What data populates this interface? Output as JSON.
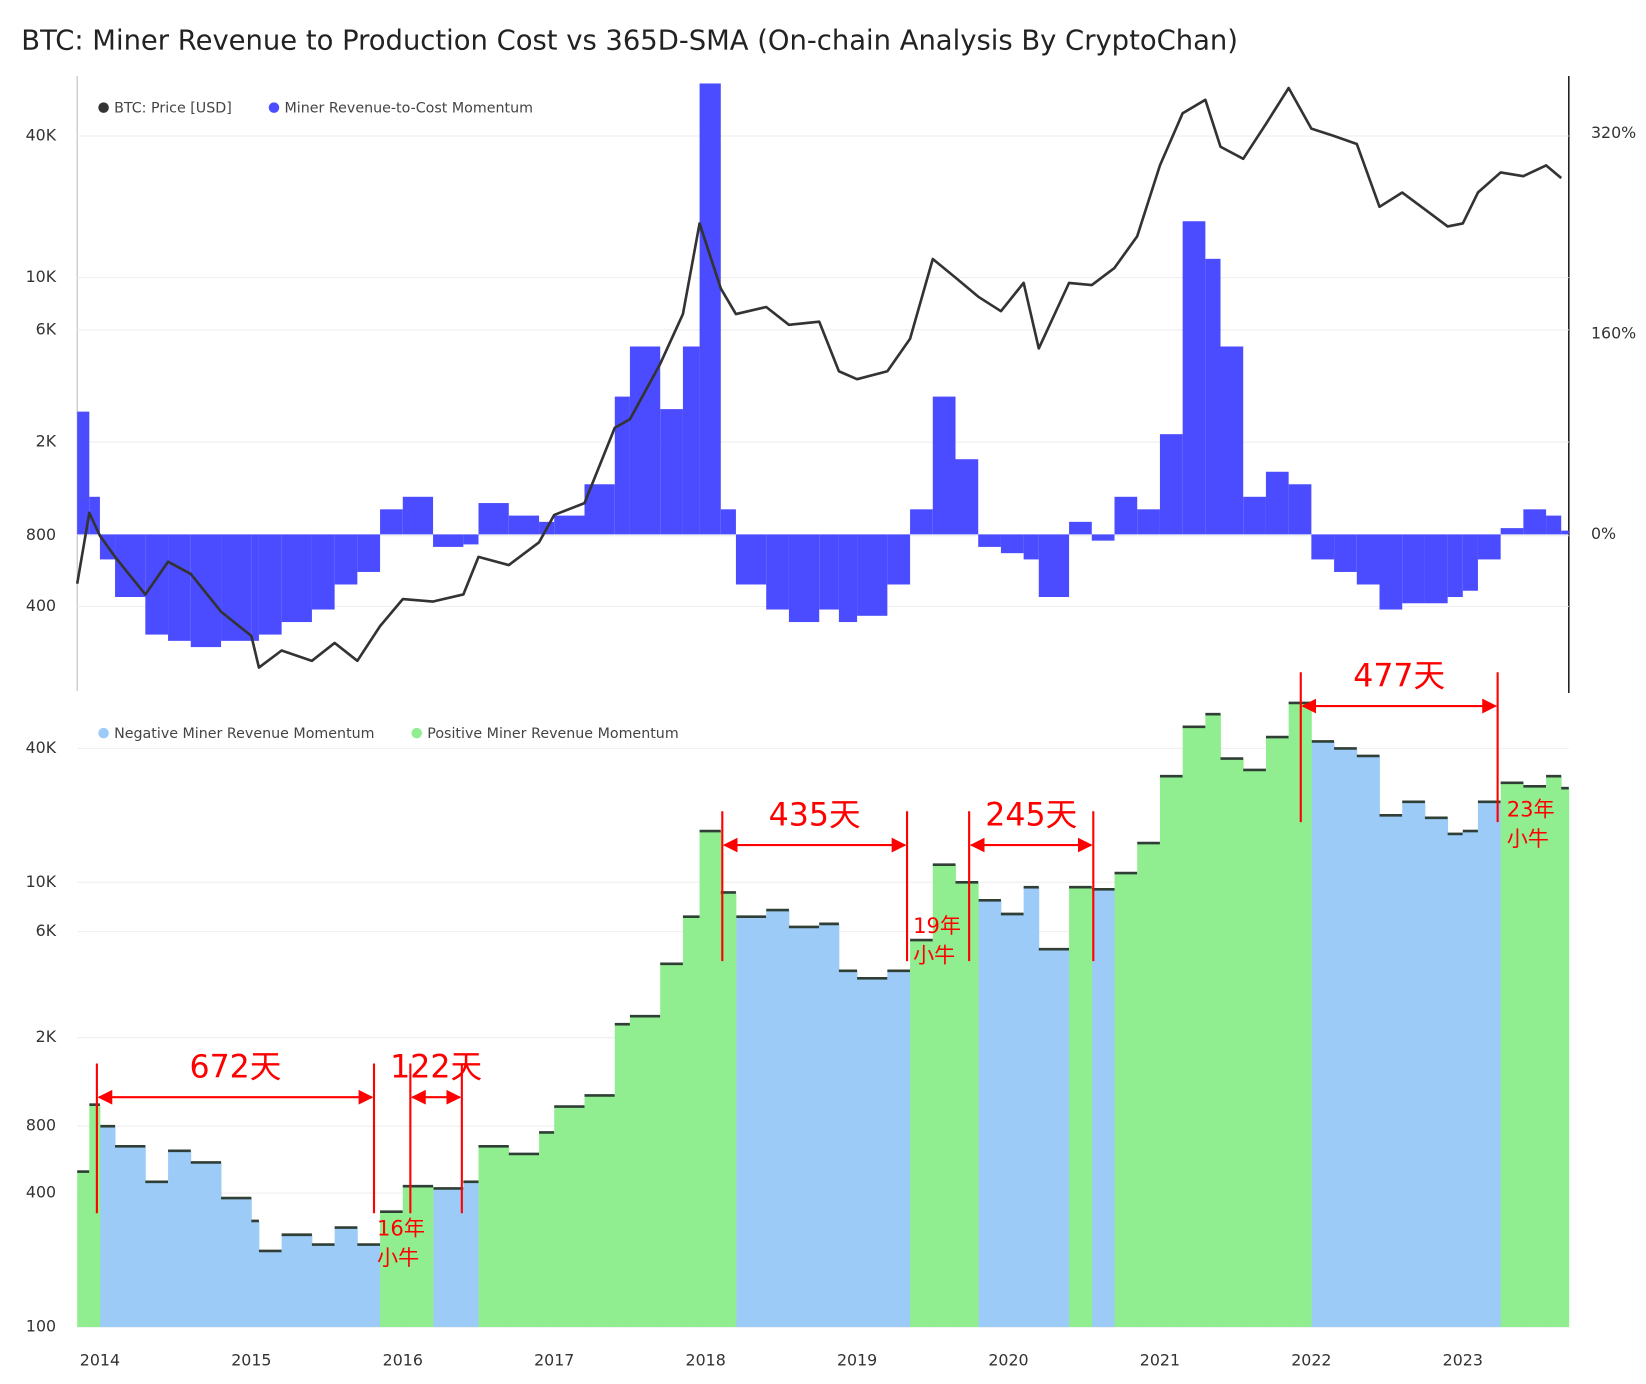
{
  "chart_data": [
    {
      "type": "line",
      "title": "BTC: Miner Revenue to Production Cost vs 365D-SMA (On-chain Analysis By CryptoChan)",
      "log_scale": true,
      "grid": true,
      "legend": "upper left",
      "xlim": [
        2013.85,
        2023.7
      ],
      "ylim": [
        175,
        72000
      ],
      "yticks": [
        {
          "value": 400,
          "label": "400"
        },
        {
          "value": 800,
          "label": "800"
        },
        {
          "value": 2000,
          "label": "2K"
        },
        {
          "value": 6000,
          "label": "6K"
        },
        {
          "value": 10000,
          "label": "10K"
        },
        {
          "value": 40000,
          "label": "40K"
        }
      ],
      "y2lim": [
        -125,
        366
      ],
      "y2ticks": [
        {
          "value": 0,
          "label": "0%"
        },
        {
          "value": 160,
          "label": "160%"
        },
        {
          "value": 320,
          "label": "320%"
        }
      ],
      "x": [
        2013.85,
        2013.93,
        2014.0,
        2014.1,
        2014.3,
        2014.45,
        2014.6,
        2014.8,
        2015.0,
        2015.05,
        2015.2,
        2015.4,
        2015.55,
        2015.7,
        2015.85,
        2016.0,
        2016.2,
        2016.4,
        2016.5,
        2016.7,
        2016.9,
        2017.0,
        2017.2,
        2017.4,
        2017.5,
        2017.7,
        2017.85,
        2017.96,
        2018.1,
        2018.2,
        2018.4,
        2018.55,
        2018.75,
        2018.88,
        2019.0,
        2019.2,
        2019.35,
        2019.5,
        2019.65,
        2019.8,
        2019.95,
        2020.1,
        2020.2,
        2020.4,
        2020.55,
        2020.7,
        2020.85,
        2021.0,
        2021.15,
        2021.3,
        2021.4,
        2021.55,
        2021.7,
        2021.85,
        2022.0,
        2022.15,
        2022.3,
        2022.45,
        2022.6,
        2022.75,
        2022.9,
        2023.0,
        2023.1,
        2023.25,
        2023.4,
        2023.55,
        2023.65
      ],
      "series": [
        {
          "name": "Miner Revenue-to-Cost Momentum",
          "color": "#4b4bff",
          "axis": "y2",
          "style": "bar",
          "values": [
            98,
            30,
            -20,
            -50,
            -80,
            -85,
            -90,
            -85,
            -85,
            -80,
            -70,
            -60,
            -40,
            -30,
            20,
            30,
            -10,
            -8,
            25,
            15,
            10,
            15,
            40,
            110,
            150,
            100,
            150,
            360,
            20,
            -40,
            -60,
            -70,
            -60,
            -70,
            -65,
            -40,
            20,
            110,
            60,
            -10,
            -15,
            -20,
            -50,
            10,
            -5,
            30,
            20,
            80,
            250,
            220,
            150,
            30,
            50,
            40,
            -20,
            -30,
            -40,
            -60,
            -55,
            -55,
            -50,
            -45,
            -20,
            5,
            20,
            15,
            3
          ]
        },
        {
          "name": "BTC: Price [USD]",
          "color": "#333333",
          "style": "line",
          "values": [
            500,
            1000,
            800,
            650,
            450,
            620,
            550,
            380,
            300,
            220,
            260,
            235,
            280,
            235,
            330,
            430,
            420,
            450,
            650,
            600,
            750,
            980,
            1100,
            2300,
            2500,
            4300,
            7000,
            17000,
            9000,
            7000,
            7500,
            6300,
            6500,
            4000,
            3700,
            4000,
            5500,
            12000,
            10000,
            8300,
            7200,
            9500,
            5000,
            9500,
            9300,
            11000,
            15000,
            30000,
            50000,
            57000,
            36000,
            32000,
            45000,
            64000,
            43000,
            40000,
            37000,
            20000,
            23000,
            19500,
            16500,
            17000,
            23000,
            28000,
            27000,
            30000,
            26500
          ]
        }
      ]
    },
    {
      "type": "area",
      "log_scale": true,
      "grid": true,
      "legend": "upper left",
      "xlim": [
        2013.85,
        2023.7
      ],
      "ylim": [
        100,
        65000
      ],
      "xticks": [
        2014,
        2015,
        2016,
        2017,
        2018,
        2019,
        2020,
        2021,
        2022,
        2023
      ],
      "yticks": [
        100,
        {
          "value": 400,
          "label": "400"
        },
        {
          "value": 800,
          "label": "800"
        },
        {
          "value": 2000,
          "label": "2K"
        },
        {
          "value": 6000,
          "label": "6K"
        },
        {
          "value": 10000,
          "label": "10K"
        },
        {
          "value": 40000,
          "label": "40K"
        }
      ],
      "x": [
        2013.85,
        2013.93,
        2014.0,
        2014.1,
        2014.3,
        2014.45,
        2014.6,
        2014.8,
        2015.0,
        2015.05,
        2015.2,
        2015.4,
        2015.55,
        2015.7,
        2015.85,
        2016.0,
        2016.2,
        2016.4,
        2016.5,
        2016.7,
        2016.9,
        2017.0,
        2017.2,
        2017.4,
        2017.5,
        2017.7,
        2017.85,
        2017.96,
        2018.1,
        2018.2,
        2018.4,
        2018.55,
        2018.75,
        2018.88,
        2019.0,
        2019.2,
        2019.35,
        2019.5,
        2019.65,
        2019.8,
        2019.95,
        2020.1,
        2020.2,
        2020.4,
        2020.55,
        2020.7,
        2020.85,
        2021.0,
        2021.15,
        2021.3,
        2021.4,
        2021.55,
        2021.7,
        2021.85,
        2022.0,
        2022.15,
        2022.3,
        2022.45,
        2022.6,
        2022.75,
        2022.9,
        2023.0,
        2023.1,
        2023.25,
        2023.4,
        2023.55,
        2023.65
      ],
      "series": [
        {
          "name": "Negative Miner Revenue Momentum",
          "color": "#9ccbf7",
          "values": [
            null,
            null,
            800,
            650,
            450,
            620,
            550,
            380,
            300,
            220,
            260,
            235,
            280,
            235,
            null,
            null,
            420,
            450,
            null,
            null,
            null,
            null,
            null,
            null,
            null,
            null,
            null,
            null,
            null,
            7000,
            7500,
            6300,
            6500,
            4000,
            3700,
            4000,
            null,
            null,
            null,
            8300,
            7200,
            9500,
            5000,
            null,
            9300,
            null,
            null,
            null,
            null,
            null,
            null,
            null,
            null,
            null,
            43000,
            40000,
            37000,
            20000,
            23000,
            19500,
            16500,
            17000,
            23000,
            null,
            null,
            null,
            null
          ]
        },
        {
          "name": "Positive Miner Revenue Momentum",
          "color": "#90ee90",
          "values": [
            500,
            1000,
            null,
            null,
            null,
            null,
            null,
            null,
            null,
            null,
            null,
            null,
            null,
            null,
            330,
            430,
            null,
            null,
            650,
            600,
            750,
            980,
            1100,
            2300,
            2500,
            4300,
            7000,
            17000,
            9000,
            null,
            null,
            null,
            null,
            null,
            null,
            null,
            5500,
            12000,
            10000,
            null,
            null,
            null,
            null,
            9500,
            null,
            11000,
            15000,
            30000,
            50000,
            57000,
            36000,
            32000,
            45000,
            64000,
            null,
            null,
            null,
            null,
            null,
            null,
            null,
            null,
            null,
            28000,
            27000,
            30000,
            26500
          ]
        }
      ],
      "annotations": [
        {
          "text": "672天",
          "x": [
            2013.98,
            2015.81
          ],
          "y": 1080
        },
        {
          "text": "122天",
          "x": [
            2016.05,
            2016.39
          ],
          "y": 1080
        },
        {
          "text": "435天",
          "x": [
            2018.11,
            2019.33
          ],
          "y": 14700
        },
        {
          "text": "245天",
          "x": [
            2019.74,
            2020.56
          ],
          "y": 14700
        },
        {
          "text": "477天",
          "x": [
            2021.93,
            2023.23
          ],
          "y": 62000
        }
      ],
      "notes": [
        {
          "lines": [
            "16年",
            "小牛"
          ],
          "x": 2015.83,
          "y": 274
        },
        {
          "lines": [
            "19年",
            "小牛"
          ],
          "x": 2019.37,
          "y": 6300
        },
        {
          "lines": [
            "23年",
            "小牛"
          ],
          "x": 2023.29,
          "y": 21000
        }
      ]
    }
  ]
}
